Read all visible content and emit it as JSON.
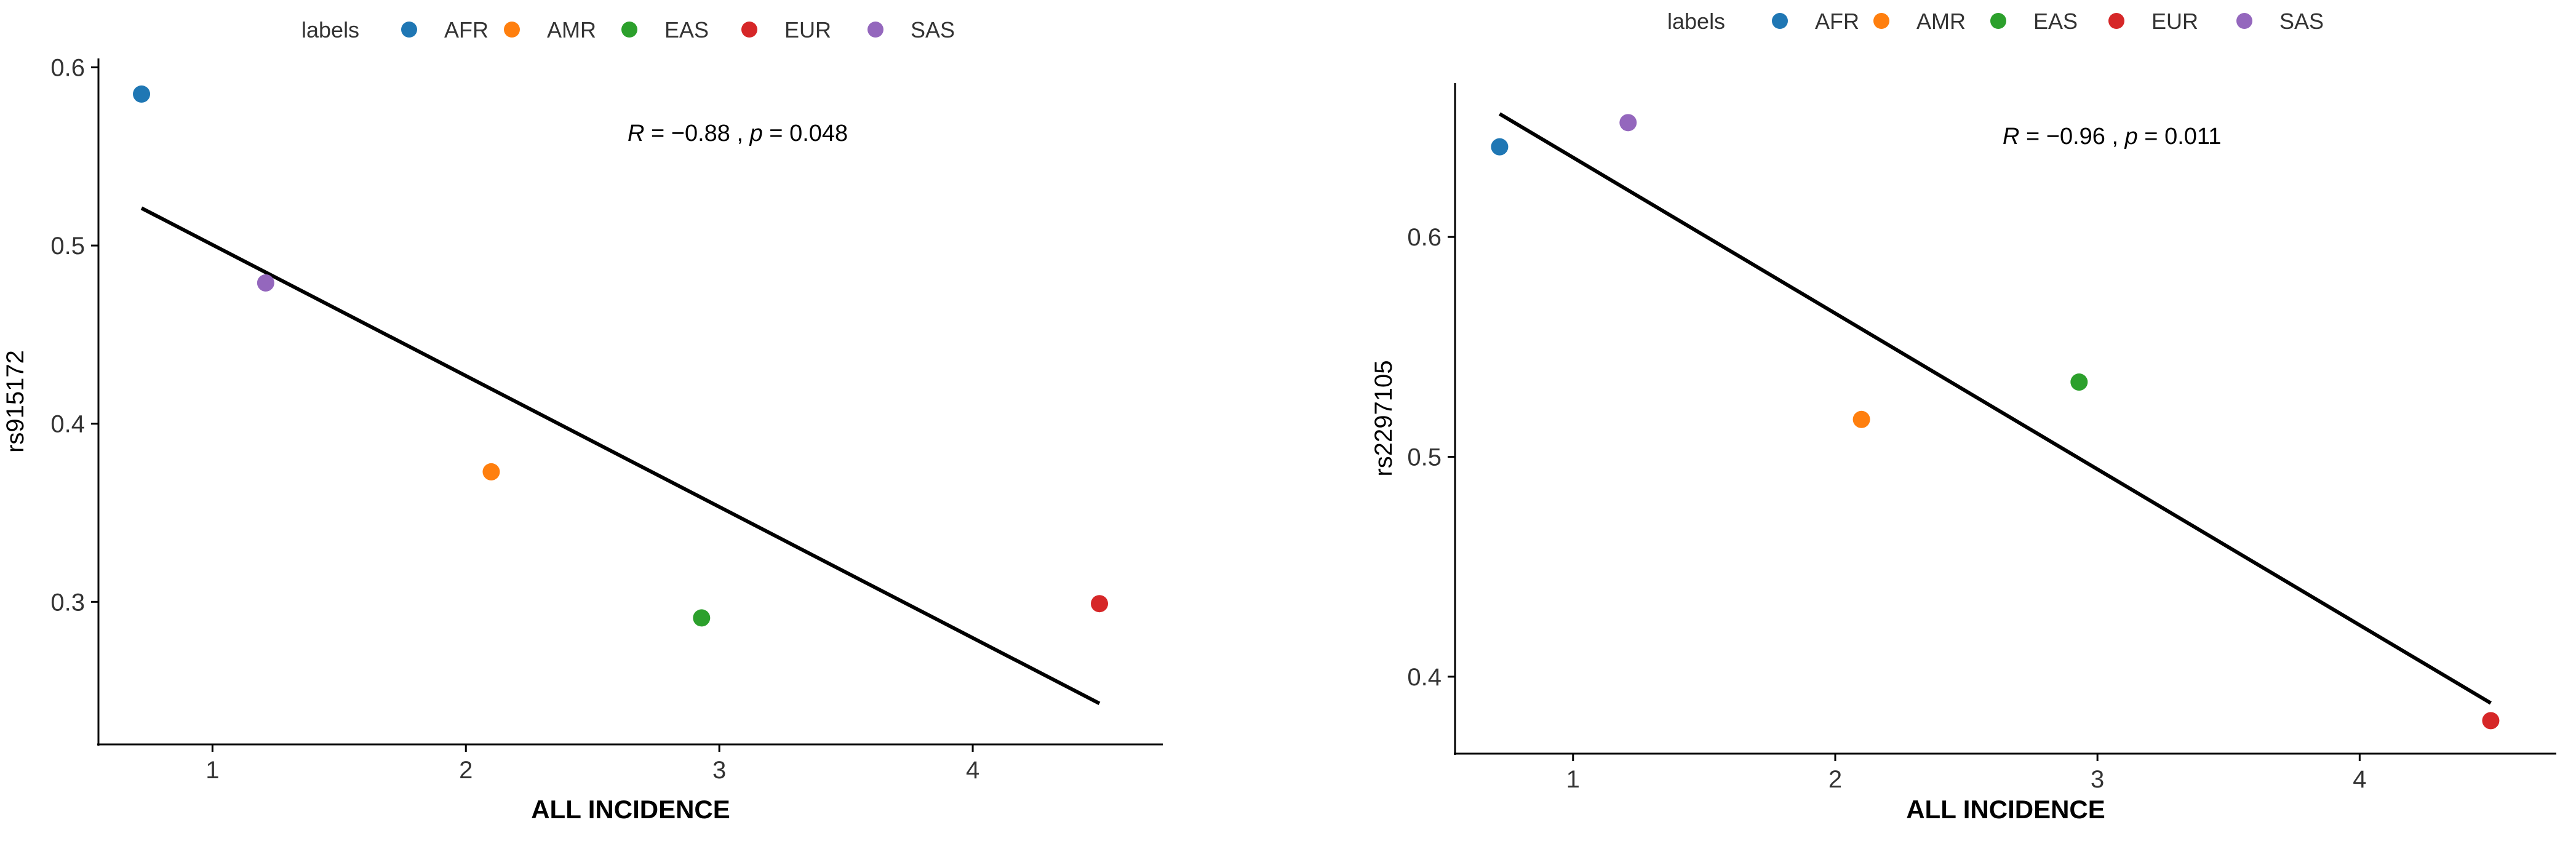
{
  "legend": {
    "title": "labels",
    "items": [
      {
        "label": "AFR",
        "color": "#1F77B4"
      },
      {
        "label": "AMR",
        "color": "#FF7F0E"
      },
      {
        "label": "EAS",
        "color": "#2CA02C"
      },
      {
        "label": "EUR",
        "color": "#D62728"
      },
      {
        "label": "SAS",
        "color": "#9467BD"
      }
    ]
  },
  "chart_data": [
    {
      "type": "scatter",
      "xlabel": "ALL INCIDENCE",
      "ylabel": "rs915172",
      "xlim": [
        0.55,
        4.75
      ],
      "ylim": [
        0.22,
        0.605
      ],
      "xticks": [
        1,
        2,
        3,
        4
      ],
      "yticks": [
        0.3,
        0.4,
        0.5,
        0.6
      ],
      "ytick_labels": [
        "0.3",
        "0.4",
        "0.5",
        "0.6"
      ],
      "grid": false,
      "legend_position": "top",
      "points": [
        {
          "label": "AFR",
          "x": 0.72,
          "y": 0.585
        },
        {
          "label": "AMR",
          "x": 2.1,
          "y": 0.373
        },
        {
          "label": "EAS",
          "x": 2.93,
          "y": 0.291
        },
        {
          "label": "EUR",
          "x": 4.5,
          "y": 0.299
        },
        {
          "label": "SAS",
          "x": 1.21,
          "y": 0.479
        }
      ],
      "fit_line": {
        "x": [
          0.72,
          4.5
        ],
        "y": [
          0.521,
          0.243
        ]
      },
      "annotation": {
        "r_sym": "R",
        "r_eq": " = ",
        "r_val": "−0.88",
        "sep": " , ",
        "p_sym": "p",
        "p_eq": " = ",
        "p_val": "0.048"
      }
    },
    {
      "type": "scatter",
      "xlabel": "ALL INCIDENCE",
      "ylabel": "rs2297105",
      "xlim": [
        0.55,
        4.75
      ],
      "ylim": [
        0.365,
        0.67
      ],
      "xticks": [
        1,
        2,
        3,
        4
      ],
      "yticks": [
        0.4,
        0.5,
        0.6
      ],
      "ytick_labels": [
        "0.4",
        "0.5",
        "0.6"
      ],
      "grid": false,
      "legend_position": "top",
      "points": [
        {
          "label": "AFR",
          "x": 0.72,
          "y": 0.641
        },
        {
          "label": "AMR",
          "x": 2.1,
          "y": 0.517
        },
        {
          "label": "EAS",
          "x": 2.93,
          "y": 0.534
        },
        {
          "label": "EUR",
          "x": 4.5,
          "y": 0.38
        },
        {
          "label": "SAS",
          "x": 1.21,
          "y": 0.652
        }
      ],
      "fit_line": {
        "x": [
          0.72,
          4.5
        ],
        "y": [
          0.656,
          0.388
        ]
      },
      "annotation": {
        "r_sym": "R",
        "r_eq": " = ",
        "r_val": "−0.96",
        "sep": " , ",
        "p_sym": "p",
        "p_eq": " = ",
        "p_val": "0.011"
      }
    }
  ]
}
